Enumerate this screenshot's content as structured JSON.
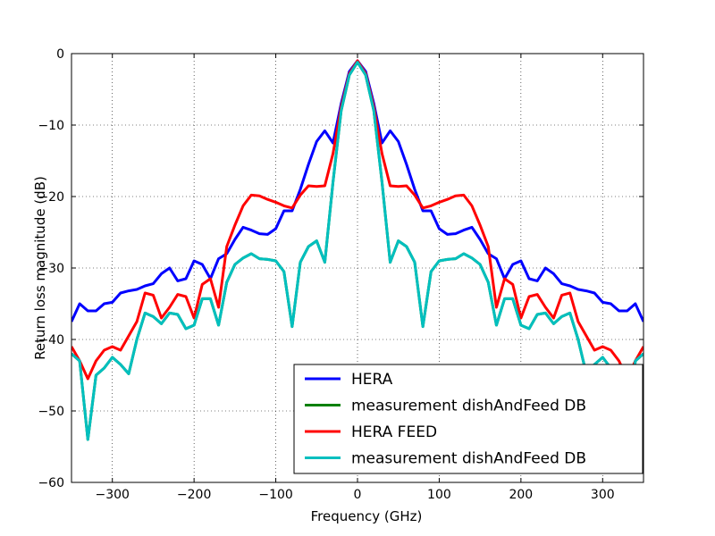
{
  "chart_data": {
    "type": "line",
    "title": "",
    "xlabel": "Frequency (GHz)",
    "ylabel": "Return loss magnitude (dB)",
    "xlim": [
      -350,
      350
    ],
    "ylim": [
      -60,
      0
    ],
    "xticks": [
      -300,
      -200,
      -100,
      0,
      100,
      200,
      300
    ],
    "yticks": [
      0,
      -10,
      -20,
      -30,
      -40,
      -50,
      -60
    ],
    "xtick_labels": [
      "−300",
      "−200",
      "−100",
      "0",
      "100",
      "200",
      "300"
    ],
    "ytick_labels": [
      "0",
      "−10",
      "−20",
      "−30",
      "−40",
      "−50",
      "−60"
    ],
    "grid": true,
    "legend_position": "lower-right",
    "series": [
      {
        "name": "HERA",
        "color": "#0000ff",
        "x": [
          -350,
          -340,
          -330,
          -320,
          -310,
          -300,
          -290,
          -280,
          -270,
          -260,
          -250,
          -240,
          -230,
          -220,
          -210,
          -200,
          -190,
          -180,
          -170,
          -160,
          -150,
          -140,
          -130,
          -120,
          -110,
          -100,
          -90,
          -80,
          -70,
          -60,
          -50,
          -40,
          -30,
          -20,
          -10,
          0,
          10,
          20,
          30,
          40,
          50,
          60,
          70,
          80,
          90,
          100,
          110,
          120,
          130,
          140,
          150,
          160,
          170,
          180,
          190,
          200,
          210,
          220,
          230,
          240,
          250,
          260,
          270,
          280,
          290,
          300,
          310,
          320,
          330,
          340,
          350
        ],
        "y": [
          -37.5,
          -35,
          -36,
          -36,
          -35,
          -34.8,
          -33.5,
          -33.2,
          -33,
          -32.5,
          -32.2,
          -30.8,
          -30,
          -31.8,
          -31.5,
          -29,
          -29.5,
          -31.5,
          -28.7,
          -28,
          -26,
          -24.3,
          -24.7,
          -25.2,
          -25.3,
          -24.5,
          -22,
          -22,
          -19,
          -15.5,
          -12.3,
          -10.8,
          -12.5,
          -7,
          -2.5,
          -1,
          -2.5,
          -7,
          -12.5,
          -10.8,
          -12.3,
          -15.5,
          -19,
          -22,
          -22,
          -24.5,
          -25.3,
          -25.2,
          -24.7,
          -24.3,
          -26,
          -28,
          -28.7,
          -31.5,
          -29.5,
          -29,
          -31.5,
          -31.8,
          -30,
          -30.8,
          -32.2,
          -32.5,
          -33,
          -33.2,
          -33.5,
          -34.8,
          -35,
          -36,
          -36,
          -35,
          -37.5
        ]
      },
      {
        "name": "measurement dishAndFeed DB",
        "color": "#008000",
        "x": [
          -350,
          -340,
          -330,
          -320,
          -310,
          -300,
          -290,
          -280,
          -270,
          -260,
          -250,
          -240,
          -230,
          -220,
          -210,
          -200,
          -190,
          -180,
          -170,
          -160,
          -150,
          -140,
          -130,
          -120,
          -110,
          -100,
          -90,
          -80,
          -70,
          -60,
          -50,
          -40,
          -30,
          -20,
          -10,
          0,
          10,
          20,
          30,
          40,
          50,
          60,
          70,
          80,
          90,
          100,
          110,
          120,
          130,
          140,
          150,
          160,
          170,
          180,
          190,
          200,
          210,
          220,
          230,
          240,
          250,
          260,
          270,
          280,
          290,
          300,
          310,
          320,
          330,
          340,
          350
        ],
        "y": [
          -42,
          -43,
          -54,
          -45,
          -44,
          -42.5,
          -43.5,
          -44.8,
          -40,
          -36.3,
          -36.8,
          -37.8,
          -36.3,
          -36.5,
          -38.5,
          -38,
          -34.3,
          -34.3,
          -38,
          -32,
          -29.5,
          -28.6,
          -28,
          -28.7,
          -28.8,
          -29,
          -30.5,
          -38.2,
          -29.2,
          -27,
          -26.2,
          -29.2,
          -18,
          -8,
          -3,
          -1.2,
          -3,
          -8,
          -18,
          -29.2,
          -26.2,
          -27,
          -29.2,
          -38.2,
          -30.5,
          -29,
          -28.8,
          -28.7,
          -28,
          -28.6,
          -29.5,
          -32,
          -38,
          -34.3,
          -34.3,
          -38,
          -38.5,
          -36.5,
          -36.3,
          -37.8,
          -36.8,
          -36.3,
          -40,
          -44.8,
          -43.5,
          -42.5,
          -44,
          -45,
          -54,
          -43,
          -42
        ]
      },
      {
        "name": "HERA FEED",
        "color": "#ff0000",
        "x": [
          -350,
          -340,
          -330,
          -320,
          -310,
          -300,
          -290,
          -280,
          -270,
          -260,
          -250,
          -240,
          -230,
          -220,
          -210,
          -200,
          -190,
          -180,
          -170,
          -160,
          -150,
          -140,
          -130,
          -120,
          -110,
          -100,
          -90,
          -80,
          -70,
          -60,
          -50,
          -40,
          -30,
          -20,
          -10,
          0,
          10,
          20,
          30,
          40,
          50,
          60,
          70,
          80,
          90,
          100,
          110,
          120,
          130,
          140,
          150,
          160,
          170,
          180,
          190,
          200,
          210,
          220,
          230,
          240,
          250,
          260,
          270,
          280,
          290,
          300,
          310,
          320,
          330,
          340,
          350
        ],
        "y": [
          -41,
          -43,
          -45.5,
          -43,
          -41.5,
          -41,
          -41.5,
          -39.5,
          -37.5,
          -33.5,
          -33.8,
          -37,
          -35.5,
          -33.7,
          -34,
          -37,
          -32.3,
          -31.5,
          -35.5,
          -27,
          -24,
          -21.3,
          -19.8,
          -19.9,
          -20.4,
          -20.8,
          -21.3,
          -21.6,
          -19.8,
          -18.5,
          -18.6,
          -18.5,
          -14,
          -7.5,
          -2.8,
          -1,
          -2.8,
          -7.5,
          -14,
          -18.5,
          -18.6,
          -18.5,
          -19.8,
          -21.6,
          -21.3,
          -20.8,
          -20.4,
          -19.9,
          -19.8,
          -21.3,
          -24,
          -27,
          -35.5,
          -31.5,
          -32.3,
          -37,
          -34,
          -33.7,
          -35.5,
          -37,
          -33.8,
          -33.5,
          -37.5,
          -39.5,
          -41.5,
          -41,
          -41.5,
          -43,
          -45.5,
          -43,
          -41
        ]
      },
      {
        "name": "measurement dishAndFeed DB",
        "color": "#00bfbf",
        "x": [
          -350,
          -340,
          -330,
          -320,
          -310,
          -300,
          -290,
          -280,
          -270,
          -260,
          -250,
          -240,
          -230,
          -220,
          -210,
          -200,
          -190,
          -180,
          -170,
          -160,
          -150,
          -140,
          -130,
          -120,
          -110,
          -100,
          -90,
          -80,
          -70,
          -60,
          -50,
          -40,
          -30,
          -20,
          -10,
          0,
          10,
          20,
          30,
          40,
          50,
          60,
          70,
          80,
          90,
          100,
          110,
          120,
          130,
          140,
          150,
          160,
          170,
          180,
          190,
          200,
          210,
          220,
          230,
          240,
          250,
          260,
          270,
          280,
          290,
          300,
          310,
          320,
          330,
          340,
          350
        ],
        "y": [
          -42,
          -43,
          -54,
          -45,
          -44,
          -42.5,
          -43.5,
          -44.8,
          -40,
          -36.3,
          -36.8,
          -37.8,
          -36.3,
          -36.5,
          -38.5,
          -38,
          -34.3,
          -34.3,
          -38,
          -32,
          -29.5,
          -28.6,
          -28,
          -28.7,
          -28.8,
          -29,
          -30.5,
          -38.2,
          -29.2,
          -27,
          -26.2,
          -29.2,
          -18,
          -8,
          -3,
          -1.2,
          -3,
          -8,
          -18,
          -29.2,
          -26.2,
          -27,
          -29.2,
          -38.2,
          -30.5,
          -29,
          -28.8,
          -28.7,
          -28,
          -28.6,
          -29.5,
          -32,
          -38,
          -34.3,
          -34.3,
          -38,
          -38.5,
          -36.5,
          -36.3,
          -37.8,
          -36.8,
          -36.3,
          -40,
          -44.8,
          -43.5,
          -42.5,
          -44,
          -45,
          -54,
          -43,
          -42
        ]
      }
    ]
  }
}
